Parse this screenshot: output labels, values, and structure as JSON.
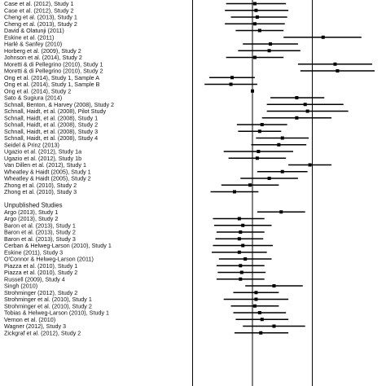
{
  "chart_data": {
    "type": "forest",
    "x_axis": {
      "reference_lines": [
        -0.5,
        0.0,
        0.5
      ],
      "xlim": [
        -1.02,
        1.02
      ]
    },
    "sections": [
      {
        "heading": "",
        "studies": [
          {
            "label": "Case et al. (2012), Study 1",
            "estimate": 0.02,
            "ci": [
              -0.22,
              0.28
            ]
          },
          {
            "label": "Case et al. (2012), Study 2",
            "estimate": 0.03,
            "ci": [
              -0.23,
              0.3
            ]
          },
          {
            "label": "Cheng et al. (2013), Study 1",
            "estimate": 0.04,
            "ci": [
              -0.18,
              0.29
            ]
          },
          {
            "label": "Cheng et al. (2013), Study 2",
            "estimate": 0.02,
            "ci": [
              -0.23,
              0.27
            ]
          },
          {
            "label": "David & Olatunji (2011)",
            "estimate": 0.06,
            "ci": [
              -0.14,
              0.26
            ]
          },
          {
            "label": "Eskine et al. (2011)",
            "estimate": 0.59,
            "ci": [
              0.26,
              0.91
            ]
          },
          {
            "label": "Harlé & Sanfey (2010)",
            "estimate": 0.15,
            "ci": [
              -0.08,
              0.38
            ]
          },
          {
            "label": "Horberg et al. (2009), Study 2",
            "estimate": 0.14,
            "ci": [
              -0.12,
              0.4
            ]
          },
          {
            "label": "Johnson et al. (2014), Study 2",
            "estimate": 0.02,
            "ci": [
              -0.22,
              0.26
            ]
          },
          {
            "label": "Moretti & di Pellegrino (2010), Study 1",
            "estimate": 0.69,
            "ci": [
              0.38,
              1.0
            ]
          },
          {
            "label": "Moretti & di Pellegrino (2010), Study 2",
            "estimate": 0.71,
            "ci": [
              0.4,
              1.02
            ]
          },
          {
            "label": "Ong et al. (2014), Study 1, Sample A",
            "estimate": -0.17,
            "ci": [
              -0.36,
              0.02
            ]
          },
          {
            "label": "Ong et al. (2014), Study 1, Sample B",
            "estimate": -0.18,
            "ci": [
              -0.4,
              0.04
            ]
          },
          {
            "label": "Ong et al. (2014), Study 2",
            "estimate": 0.0,
            "ci": [
              0.0,
              0.0
            ]
          },
          {
            "label": "Sato & Sugiura (2014)",
            "estimate": 0.37,
            "ci": [
              0.15,
              0.6
            ]
          },
          {
            "label": "Schnall, Benton, & Harvey (2008), Study 2",
            "estimate": 0.44,
            "ci": [
              0.12,
              0.76
            ]
          },
          {
            "label": "Schnall, Haidt, et al. (2008), Pilot Study",
            "estimate": 0.46,
            "ci": [
              0.12,
              0.8
            ]
          },
          {
            "label": "Schnall, Haidt, et al. (2008), Study 1",
            "estimate": 0.37,
            "ci": [
              0.08,
              0.66
            ]
          },
          {
            "label": "Schnall, Haidt, et al. (2008), Study 2",
            "estimate": 0.08,
            "ci": [
              -0.13,
              0.29
            ]
          },
          {
            "label": "Schnall, Haidt, et al. (2008), Study 3",
            "estimate": 0.06,
            "ci": [
              -0.12,
              0.24
            ]
          },
          {
            "label": "Schnall, Haidt, et al. (2008), Study 4",
            "estimate": 0.25,
            "ci": [
              0.03,
              0.47
            ]
          },
          {
            "label": "Seidel & Prinz (2013)",
            "estimate": 0.22,
            "ci": [
              -0.01,
              0.45
            ]
          },
          {
            "label": "Ugazio et al. (2012), Study 1a",
            "estimate": 0.05,
            "ci": [
              -0.24,
              0.34
            ]
          },
          {
            "label": "Ugazio et al. (2012), Study 1b",
            "estimate": 0.04,
            "ci": [
              -0.2,
              0.28
            ]
          },
          {
            "label": "Van Dillen et al. (2012), Study 1",
            "estimate": 0.48,
            "ci": [
              0.3,
              0.66
            ]
          },
          {
            "label": "Wheatley & Haidt (2005), Study 1",
            "estimate": 0.25,
            "ci": [
              0.04,
              0.46
            ]
          },
          {
            "label": "Wheatley & Haidt (2005), Study 2",
            "estimate": 0.14,
            "ci": [
              -0.1,
              0.38
            ]
          },
          {
            "label": "Zhong et al. (2010), Study 2",
            "estimate": -0.02,
            "ci": [
              -0.26,
              0.22
            ]
          },
          {
            "label": "Zhong et al. (2010), Study 3",
            "estimate": -0.15,
            "ci": [
              -0.35,
              0.05
            ]
          }
        ]
      },
      {
        "heading": "Unpublished Studies",
        "studies": [
          {
            "label": "Argo (2013), Study 1",
            "estimate": 0.24,
            "ci": [
              0.04,
              0.44
            ]
          },
          {
            "label": "Argo (2013), Study 2",
            "estimate": -0.11,
            "ci": [
              -0.33,
              0.1
            ]
          },
          {
            "label": "Baron et al. (2013), Study 1",
            "estimate": -0.08,
            "ci": [
              -0.32,
              0.16
            ]
          },
          {
            "label": "Baron et al. (2013), Study 2",
            "estimate": -0.1,
            "ci": [
              -0.3,
              0.1
            ]
          },
          {
            "label": "Baron et al. (2013), Study 3",
            "estimate": -0.11,
            "ci": [
              -0.31,
              0.09
            ]
          },
          {
            "label": "Cerban & Helweg-Larson (2010), Study 1",
            "estimate": -0.08,
            "ci": [
              -0.33,
              0.17
            ]
          },
          {
            "label": "Eskine (2011), Study 3",
            "estimate": -0.11,
            "ci": [
              -0.34,
              0.12
            ]
          },
          {
            "label": "O'Connor & Helweg-Larson (2011)",
            "estimate": -0.06,
            "ci": [
              -0.28,
              0.16
            ]
          },
          {
            "label": "Piazza et al. (2010), Study 1",
            "estimate": -0.1,
            "ci": [
              -0.3,
              0.1
            ]
          },
          {
            "label": "Piazza et al. (2010), Study 2",
            "estimate": -0.09,
            "ci": [
              -0.29,
              0.11
            ]
          },
          {
            "label": "Russell (2009), Study 4",
            "estimate": -0.1,
            "ci": [
              -0.3,
              0.1
            ]
          },
          {
            "label": "Singh (2010)",
            "estimate": 0.18,
            "ci": [
              -0.06,
              0.42
            ]
          },
          {
            "label": "Strohminger (2012), Study 2",
            "estimate": 0.03,
            "ci": [
              -0.16,
              0.22
            ]
          },
          {
            "label": "Strohminger et al. (2010), Study 1",
            "estimate": 0.03,
            "ci": [
              -0.24,
              0.3
            ]
          },
          {
            "label": "Strohminger et al. (2010), Study 2",
            "estimate": 0.02,
            "ci": [
              -0.18,
              0.22
            ]
          },
          {
            "label": "Tobias & Helweg-Larson (2010), Study 1",
            "estimate": 0.06,
            "ci": [
              -0.16,
              0.28
            ]
          },
          {
            "label": "Vernon et al. (2010)",
            "estimate": 0.08,
            "ci": [
              -0.14,
              0.3
            ]
          },
          {
            "label": "Wagner (2012), Study 3",
            "estimate": 0.18,
            "ci": [
              -0.08,
              0.44
            ]
          },
          {
            "label": "Zickgraf et al. (2012), Study 2",
            "estimate": 0.07,
            "ci": [
              -0.15,
              0.3
            ]
          }
        ]
      }
    ]
  }
}
